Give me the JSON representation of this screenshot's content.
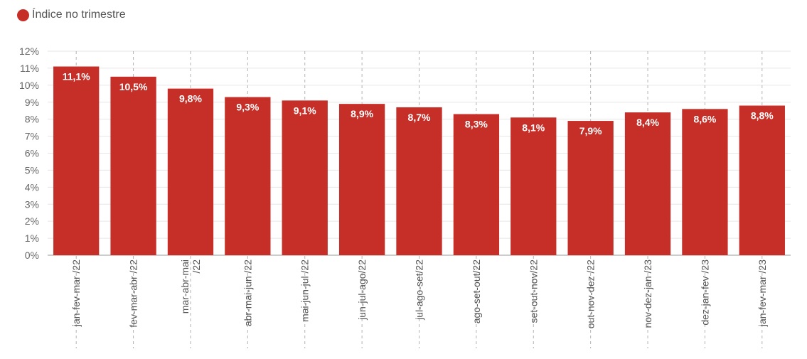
{
  "legend": {
    "label": "Índice no trimestre",
    "color": "#c62f28"
  },
  "chart_data": {
    "type": "bar",
    "categories": [
      "jan-fev-mar /22",
      "fev-mar-abr /22",
      "mar-abr-mai /22",
      "abr-mai-jun /22",
      "mai-jun-jul /22",
      "jun-jul-ago/22",
      "jul-ago-set/22",
      "ago-set-out/22",
      "set-out-nov/22",
      "out-nov-dez /22",
      "nov-dez-jan /23",
      "dez-jan-fev /23",
      "jan-fev-mar /23"
    ],
    "category_lines": [
      [
        "jan-fev-mar /22"
      ],
      [
        "fev-mar-abr /22"
      ],
      [
        "mar-abr-mai",
        "/22"
      ],
      [
        "abr-mai-jun /22"
      ],
      [
        "mai-jun-jul /22"
      ],
      [
        "jun-jul-ago/22"
      ],
      [
        "jul-ago-set/22"
      ],
      [
        "ago-set-out/22"
      ],
      [
        "set-out-nov/22"
      ],
      [
        "out-nov-dez /22"
      ],
      [
        "nov-dez-jan /23"
      ],
      [
        "dez-jan-fev /23"
      ],
      [
        "jan-fev-mar /23"
      ]
    ],
    "series": [
      {
        "name": "Índice no trimestre",
        "values": [
          11.1,
          10.5,
          9.8,
          9.3,
          9.1,
          8.9,
          8.7,
          8.3,
          8.1,
          7.9,
          8.4,
          8.6,
          8.8
        ]
      }
    ],
    "data_labels": [
      "11,1%",
      "10,5%",
      "9,8%",
      "9,3%",
      "9,1%",
      "8,9%",
      "8,7%",
      "8,3%",
      "8,1%",
      "7,9%",
      "8,4%",
      "8,6%",
      "8,8%"
    ],
    "ylim": [
      0,
      12
    ],
    "yticks": [
      "0%",
      "1%",
      "2%",
      "3%",
      "4%",
      "5%",
      "6%",
      "7%",
      "8%",
      "9%",
      "10%",
      "11%",
      "12%"
    ],
    "grid": true,
    "bar_color": "#c62f28",
    "legend_position": "top-left"
  }
}
